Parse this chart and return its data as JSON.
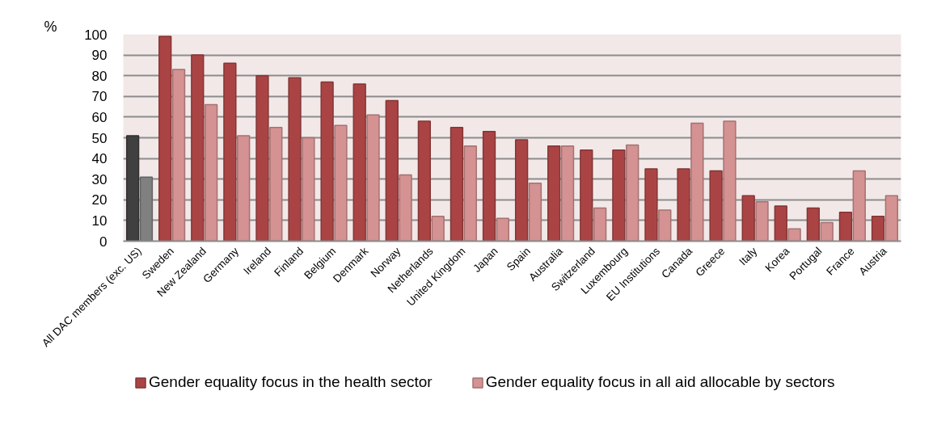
{
  "chart_data": {
    "type": "bar",
    "ylabel": "%",
    "categories": [
      "All DAC members (exc. US)",
      "Sweden",
      "New Zealand",
      "Germany",
      "Ireland",
      "Finland",
      "Belgium",
      "Denmark",
      "Norway",
      "Netherlands",
      "United Kingdom",
      "Japan",
      "Spain",
      "Australia",
      "Switzerland",
      "Luxembourg",
      "EU Institutions",
      "Canada",
      "Greece",
      "Italy",
      "Korea",
      "Portugal",
      "France",
      "Austria"
    ],
    "ylim": [
      0,
      100
    ],
    "yticks": [
      0,
      10,
      20,
      30,
      40,
      50,
      60,
      70,
      80,
      90,
      100
    ],
    "grid": "y",
    "legend": "bottom",
    "series": [
      {
        "name": "Gender equality focus in the health sector",
        "color": "#aa4444",
        "colors": [
          "#404040",
          "#aa4444",
          "#aa4444",
          "#aa4444",
          "#aa4444",
          "#aa4444",
          "#aa4444",
          "#aa4444",
          "#aa4444",
          "#aa4444",
          "#aa4444",
          "#aa4444",
          "#aa4444",
          "#aa4444",
          "#aa4444",
          "#aa4444",
          "#aa4444",
          "#aa4444",
          "#aa4444",
          "#aa4444",
          "#aa4444",
          "#aa4444",
          "#aa4444",
          "#aa4444"
        ],
        "values": [
          51,
          99,
          90,
          86,
          80,
          79,
          77,
          76,
          68,
          58,
          55,
          53,
          49,
          46,
          44,
          44,
          35,
          35,
          34,
          22,
          17,
          16,
          14,
          12
        ]
      },
      {
        "name": "Gender equality focus in all aid allocable by sectors",
        "color": "#d49292",
        "colors": [
          "#808080",
          "#d49292",
          "#d49292",
          "#d49292",
          "#d49292",
          "#d49292",
          "#d49292",
          "#d49292",
          "#d49292",
          "#d49292",
          "#d49292",
          "#d49292",
          "#d49292",
          "#d49292",
          "#d49292",
          "#d49292",
          "#d49292",
          "#d49292",
          "#d49292",
          "#d49292",
          "#d49292",
          "#d49292",
          "#d49292",
          "#d49292"
        ],
        "values": [
          31,
          83,
          66,
          51,
          55,
          50,
          56,
          61,
          32,
          12,
          46,
          11,
          28,
          46,
          16,
          46.5,
          15,
          57,
          58,
          19,
          6,
          9,
          34,
          22
        ]
      }
    ]
  }
}
